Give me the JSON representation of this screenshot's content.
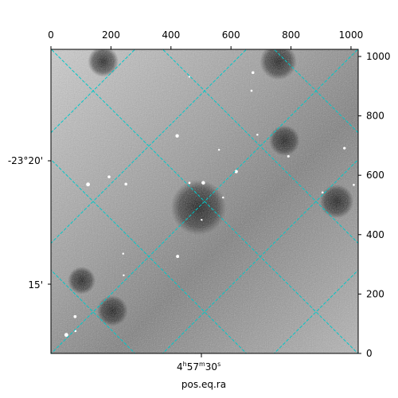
{
  "chart_data": {
    "type": "heatmap",
    "description_free": true,
    "colormap": "gray",
    "pixel_axes": {
      "x_range": [
        0,
        1024
      ],
      "y_range": [
        0,
        1024
      ],
      "top_ticks": [
        "0",
        "200",
        "400",
        "600",
        "800",
        "1000"
      ],
      "right_ticks": [
        "0",
        "200",
        "400",
        "600",
        "800",
        "1000"
      ]
    },
    "world_axes": {
      "left_ticks": [
        "-23°20'",
        "15'"
      ],
      "bottom_ticks": [
        {
          "base": "4",
          "h": "h",
          "mm": "57",
          "m": "m",
          "ss": "30",
          "s": "s"
        }
      ],
      "xlabel": "pos.eq.ra"
    },
    "grid": true,
    "grid_color": "#00c8c8",
    "grid_angle_deg": 45,
    "stars": 24,
    "dark_blobs": [
      {
        "u": 0.17,
        "v": 0.04,
        "r": 0.05
      },
      {
        "u": 0.74,
        "v": 0.04,
        "r": 0.06
      },
      {
        "u": 0.93,
        "v": 0.5,
        "r": 0.055
      },
      {
        "u": 0.2,
        "v": 0.86,
        "r": 0.05
      },
      {
        "u": 0.1,
        "v": 0.76,
        "r": 0.045
      },
      {
        "u": 0.76,
        "v": 0.3,
        "r": 0.05
      },
      {
        "u": 0.48,
        "v": 0.52,
        "r": 0.09
      }
    ]
  }
}
